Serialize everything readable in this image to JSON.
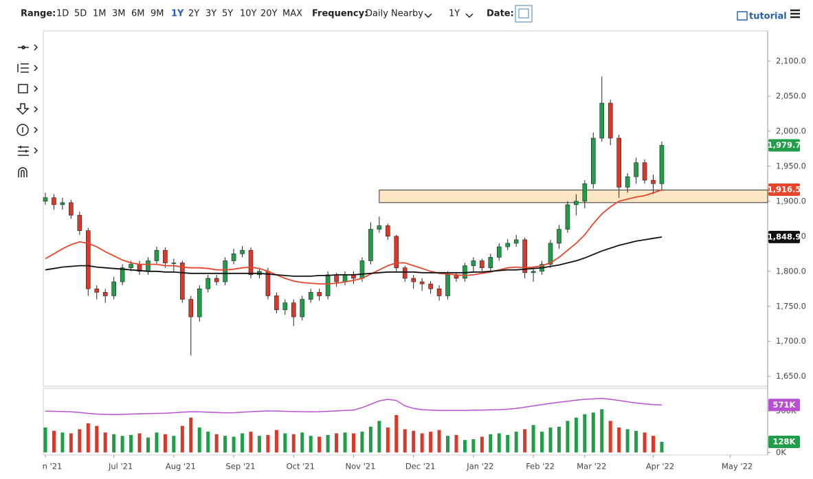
{
  "toolbar": {
    "range_label": "Range:",
    "ranges": [
      "1D",
      "5D",
      "1M",
      "3M",
      "6M",
      "9M",
      "1Y",
      "2Y",
      "3Y",
      "5Y",
      "10Y",
      "20Y",
      "MAX"
    ],
    "active_range": 6,
    "frequency_label": "Frequency:",
    "frequency": "Daily Nearby",
    "period": "1Y",
    "date_label": "Date:",
    "tutorial": "tutorial"
  },
  "chart_data": {
    "type": "candlestick",
    "grid": false,
    "categories": [
      "n '21",
      null,
      null,
      null,
      null,
      null,
      null,
      null,
      "Jul '21",
      null,
      null,
      null,
      null,
      null,
      null,
      "Aug '21",
      null,
      null,
      null,
      null,
      null,
      null,
      "Sep '21",
      null,
      null,
      null,
      null,
      null,
      null,
      "Oct '21",
      null,
      null,
      null,
      null,
      null,
      null,
      "Nov '21",
      null,
      null,
      null,
      null,
      null,
      null,
      "Dec '21",
      null,
      null,
      null,
      null,
      null,
      null,
      "Jan '22",
      null,
      null,
      null,
      null,
      null,
      null,
      "Feb '22",
      null,
      null,
      null,
      null,
      null,
      "Mar '22",
      null,
      null,
      null,
      null,
      null,
      null,
      null,
      "Apr '22",
      null,
      null,
      null,
      null,
      null,
      null,
      null,
      null,
      "May '22",
      null,
      null,
      null
    ],
    "ylim": [
      1636,
      2143
    ],
    "yticks": [
      {
        "value": 1650,
        "label": "1,650.0"
      },
      {
        "value": 1700,
        "label": "1,700.0"
      },
      {
        "value": 1750,
        "label": "1,750.0"
      },
      {
        "value": 1800,
        "label": "1,800.0"
      },
      {
        "value": 1850,
        "label": "1,850.0"
      },
      {
        "value": 1900,
        "label": "1,900.0"
      },
      {
        "value": 1950,
        "label": "1,950.0"
      },
      {
        "value": 2000,
        "label": "2,000.0"
      },
      {
        "value": 2050,
        "label": "2,050.0"
      },
      {
        "value": 2100,
        "label": "2,100.0"
      }
    ],
    "price": {
      "up_color": "#1f9d48",
      "down_color": "#d9392a",
      "open": [
        1900,
        1905,
        1895,
        1898,
        1880,
        1858,
        1775,
        1770,
        1765,
        1785,
        1805,
        1810,
        1800,
        1815,
        1830,
        1812,
        1812,
        1760,
        1735,
        1775,
        1790,
        1785,
        1815,
        1825,
        1830,
        1795,
        1800,
        1765,
        1745,
        1755,
        1735,
        1760,
        1770,
        1765,
        1795,
        1785,
        1795,
        1790,
        1815,
        1860,
        1865,
        1850,
        1805,
        1790,
        1785,
        1782,
        1775,
        1765,
        1795,
        1790,
        1808,
        1815,
        1805,
        1820,
        1835,
        1840,
        1845,
        1798,
        1800,
        1810,
        1840,
        1860,
        1895,
        1900,
        1925,
        1990,
        2040,
        1990,
        1920,
        1935,
        1955,
        1930,
        1925,
        null,
        null,
        null,
        null,
        null,
        null,
        null,
        null,
        null,
        null,
        null
      ],
      "high": [
        1912,
        1910,
        1905,
        1902,
        1885,
        1862,
        1780,
        1775,
        1792,
        1810,
        1815,
        1815,
        1820,
        1835,
        1834,
        1818,
        1815,
        1765,
        1780,
        1795,
        1795,
        1820,
        1832,
        1836,
        1834,
        1805,
        1805,
        1770,
        1760,
        1760,
        1765,
        1775,
        1775,
        1800,
        1798,
        1800,
        1800,
        1820,
        1870,
        1878,
        1868,
        1852,
        1808,
        1795,
        1790,
        1786,
        1780,
        1800,
        1798,
        1812,
        1820,
        1818,
        1825,
        1840,
        1846,
        1852,
        1848,
        1806,
        1815,
        1845,
        1866,
        1900,
        1910,
        1930,
        1998,
        2078,
        2045,
        1995,
        1940,
        1962,
        1960,
        1938,
        1985,
        null,
        null,
        null,
        null,
        null,
        null,
        null,
        null,
        null,
        null,
        null
      ],
      "low": [
        1895,
        1888,
        1888,
        1875,
        1852,
        1765,
        1760,
        1755,
        1760,
        1780,
        1800,
        1795,
        1795,
        1810,
        1805,
        1800,
        1755,
        1680,
        1728,
        1770,
        1780,
        1780,
        1810,
        1820,
        1790,
        1790,
        1760,
        1740,
        1738,
        1722,
        1730,
        1755,
        1758,
        1760,
        1778,
        1780,
        1782,
        1785,
        1810,
        1855,
        1845,
        1800,
        1785,
        1775,
        1772,
        1768,
        1758,
        1760,
        1785,
        1785,
        1800,
        1800,
        1800,
        1815,
        1830,
        1835,
        1790,
        1785,
        1795,
        1805,
        1832,
        1855,
        1880,
        1890,
        1918,
        1985,
        1980,
        1905,
        1912,
        1925,
        1925,
        1910,
        1915,
        null,
        null,
        null,
        null,
        null,
        null,
        null,
        null,
        null,
        null,
        null
      ],
      "close": [
        1905,
        1895,
        1898,
        1880,
        1858,
        1775,
        1770,
        1765,
        1785,
        1805,
        1810,
        1800,
        1815,
        1830,
        1812,
        1812,
        1760,
        1735,
        1775,
        1790,
        1785,
        1815,
        1825,
        1830,
        1795,
        1800,
        1765,
        1745,
        1755,
        1735,
        1760,
        1770,
        1765,
        1795,
        1785,
        1795,
        1790,
        1815,
        1860,
        1865,
        1850,
        1805,
        1790,
        1785,
        1782,
        1775,
        1765,
        1795,
        1790,
        1808,
        1815,
        1805,
        1820,
        1835,
        1840,
        1845,
        1798,
        1800,
        1810,
        1840,
        1860,
        1895,
        1900,
        1925,
        1990,
        2040,
        1990,
        1920,
        1935,
        1955,
        1930,
        1925,
        1979.7,
        null,
        null,
        null,
        null,
        null,
        null,
        null,
        null,
        null,
        null,
        null
      ],
      "value_labels": [
        null,
        null,
        null,
        null,
        null,
        null,
        null,
        null,
        null,
        null,
        null,
        null,
        null,
        null,
        null,
        null,
        null,
        null,
        null,
        null,
        null,
        null,
        null,
        null,
        null,
        null,
        null,
        null,
        null,
        null,
        null,
        null,
        null,
        null,
        null,
        null,
        null,
        null,
        null,
        null,
        null,
        null,
        null,
        null,
        null,
        null,
        null,
        null,
        null,
        null,
        null,
        null,
        null,
        null,
        null,
        null,
        null,
        null,
        null,
        null,
        null,
        null,
        null,
        null,
        null,
        null,
        null,
        null,
        null,
        null,
        null,
        null,
        "1,979.7",
        null,
        null,
        null,
        null,
        null,
        null,
        null,
        null,
        null,
        null,
        null
      ]
    },
    "overlays": [
      {
        "color": "#e8452c",
        "label_text": "#ffffff",
        "values": [
          1818,
          1825,
          1832,
          1838,
          1842,
          1840,
          1835,
          1828,
          1822,
          1816,
          1812,
          1810,
          1810,
          1810,
          1808,
          1808,
          1806,
          1805,
          1805,
          1804,
          1802,
          1802,
          1803,
          1805,
          1806,
          1804,
          1800,
          1795,
          1790,
          1786,
          1784,
          1783,
          1782,
          1782,
          1783,
          1785,
          1787,
          1790,
          1796,
          1802,
          1808,
          1812,
          1812,
          1808,
          1804,
          1800,
          1797,
          1796,
          1795,
          1794,
          1795,
          1797,
          1799,
          1802,
          1805,
          1806,
          1805,
          1806,
          1808,
          1812,
          1820,
          1830,
          1840,
          1852,
          1868,
          1882,
          1892,
          1900,
          1903,
          1906,
          1908,
          1912,
          1916.5,
          null,
          null,
          null,
          null,
          null,
          null,
          null,
          null,
          null,
          null,
          null
        ],
        "value_labels": [
          null,
          null,
          null,
          null,
          null,
          null,
          null,
          null,
          null,
          null,
          null,
          null,
          null,
          null,
          null,
          null,
          null,
          null,
          null,
          null,
          null,
          null,
          null,
          null,
          null,
          null,
          null,
          null,
          null,
          null,
          null,
          null,
          null,
          null,
          null,
          null,
          null,
          null,
          null,
          null,
          null,
          null,
          null,
          null,
          null,
          null,
          null,
          null,
          null,
          null,
          null,
          null,
          null,
          null,
          null,
          null,
          null,
          null,
          null,
          null,
          null,
          null,
          null,
          null,
          null,
          null,
          null,
          null,
          null,
          null,
          null,
          null,
          "1,916.5",
          null,
          null,
          null,
          null,
          null,
          null,
          null,
          null,
          null,
          null,
          null
        ]
      },
      {
        "color": "#111111",
        "label_text": "#ffffff",
        "values": [
          1802,
          1804,
          1806,
          1807,
          1808,
          1808,
          1806,
          1805,
          1804,
          1803,
          1802,
          1801,
          1800,
          1800,
          1799,
          1799,
          1798,
          1797,
          1797,
          1797,
          1797,
          1797,
          1797,
          1797,
          1797,
          1797,
          1796,
          1795,
          1794,
          1793,
          1793,
          1793,
          1794,
          1794,
          1795,
          1795,
          1795,
          1796,
          1797,
          1798,
          1799,
          1799,
          1799,
          1799,
          1798,
          1798,
          1798,
          1798,
          1798,
          1798,
          1799,
          1799,
          1800,
          1801,
          1802,
          1802,
          1803,
          1804,
          1805,
          1807,
          1809,
          1812,
          1815,
          1819,
          1824,
          1829,
          1833,
          1837,
          1840,
          1843,
          1845,
          1847,
          1848.9,
          null,
          null,
          null,
          null,
          null,
          null,
          null,
          null,
          null,
          null,
          null
        ],
        "value_labels": [
          null,
          null,
          null,
          null,
          null,
          null,
          null,
          null,
          null,
          null,
          null,
          null,
          null,
          null,
          null,
          null,
          null,
          null,
          null,
          null,
          null,
          null,
          null,
          null,
          null,
          null,
          null,
          null,
          null,
          null,
          null,
          null,
          null,
          null,
          null,
          null,
          null,
          null,
          null,
          null,
          null,
          null,
          null,
          null,
          null,
          null,
          null,
          null,
          null,
          null,
          null,
          null,
          null,
          null,
          null,
          null,
          null,
          null,
          null,
          null,
          null,
          null,
          null,
          null,
          null,
          null,
          null,
          null,
          null,
          null,
          null,
          null,
          "1,848.9",
          null,
          null,
          null,
          null,
          null,
          null,
          null,
          null,
          null,
          null,
          null
        ]
      }
    ],
    "zone": [
      1898,
      1916
    ],
    "zone_start": 39,
    "zone_color": "#fde6c4",
    "volume": {
      "ylim": [
        -30,
        772
      ],
      "yticks": [
        {
          "value": 0,
          "label": "0K"
        },
        {
          "value": 500,
          "label": "500K"
        }
      ],
      "color": "#1f9d48",
      "values": [
        300,
        260,
        240,
        230,
        280,
        350,
        320,
        240,
        220,
        200,
        210,
        230,
        180,
        240,
        220,
        200,
        320,
        420,
        300,
        250,
        220,
        200,
        190,
        230,
        250,
        200,
        210,
        270,
        230,
        220,
        240,
        200,
        190,
        210,
        230,
        240,
        230,
        250,
        310,
        380,
        300,
        450,
        280,
        260,
        230,
        250,
        270,
        200,
        210,
        150,
        160,
        190,
        220,
        230,
        210,
        250,
        280,
        330,
        250,
        300,
        310,
        380,
        420,
        460,
        480,
        520,
        380,
        300,
        280,
        260,
        240,
        200,
        128,
        null,
        null,
        null,
        null,
        null,
        null,
        null,
        null,
        null,
        null,
        null
      ],
      "value_labels": [
        null,
        null,
        null,
        null,
        null,
        null,
        null,
        null,
        null,
        null,
        null,
        null,
        null,
        null,
        null,
        null,
        null,
        null,
        null,
        null,
        null,
        null,
        null,
        null,
        null,
        null,
        null,
        null,
        null,
        null,
        null,
        null,
        null,
        null,
        null,
        null,
        null,
        null,
        null,
        null,
        null,
        null,
        null,
        null,
        null,
        null,
        null,
        null,
        null,
        null,
        null,
        null,
        null,
        null,
        null,
        null,
        null,
        null,
        null,
        null,
        null,
        null,
        null,
        null,
        null,
        null,
        null,
        null,
        null,
        null,
        null,
        null,
        "128K",
        null,
        null,
        null,
        null,
        null,
        null,
        null,
        null,
        null,
        null,
        null
      ]
    },
    "open_interest": {
      "color": "#b94fd1",
      "values": [
        497,
        495,
        492,
        488,
        480,
        470,
        462,
        458,
        455,
        458,
        462,
        465,
        468,
        470,
        472,
        478,
        485,
        490,
        488,
        485,
        480,
        476,
        478,
        485,
        490,
        495,
        500,
        498,
        495,
        492,
        490,
        488,
        490,
        495,
        500,
        505,
        510,
        540,
        580,
        620,
        640,
        625,
        560,
        530,
        515,
        510,
        505,
        505,
        505,
        505,
        508,
        510,
        512,
        515,
        520,
        530,
        545,
        560,
        575,
        590,
        605,
        615,
        630,
        640,
        645,
        650,
        640,
        625,
        610,
        595,
        585,
        575,
        571,
        null,
        null,
        null,
        null,
        null,
        null,
        null,
        null,
        null,
        null,
        null
      ],
      "value_labels": [
        null,
        null,
        null,
        null,
        null,
        null,
        null,
        null,
        null,
        null,
        null,
        null,
        null,
        null,
        null,
        null,
        null,
        null,
        null,
        null,
        null,
        null,
        null,
        null,
        null,
        null,
        null,
        null,
        null,
        null,
        null,
        null,
        null,
        null,
        null,
        null,
        null,
        null,
        null,
        null,
        null,
        null,
        null,
        null,
        null,
        null,
        null,
        null,
        null,
        null,
        null,
        null,
        null,
        null,
        null,
        null,
        null,
        null,
        null,
        null,
        null,
        null,
        null,
        null,
        null,
        null,
        null,
        null,
        null,
        null,
        null,
        null,
        "571K",
        null,
        null,
        null,
        null,
        null,
        null,
        null,
        null,
        null,
        null,
        null
      ]
    }
  }
}
